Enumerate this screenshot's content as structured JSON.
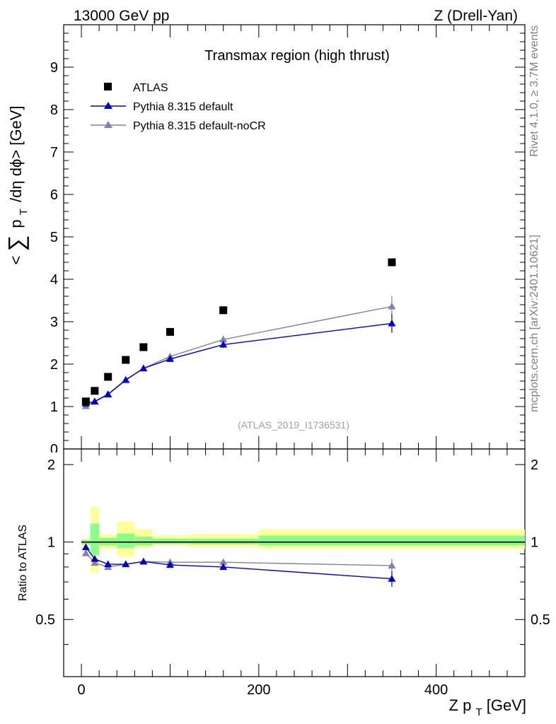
{
  "header": {
    "left": "13000 GeV pp",
    "right": "Z (Drell-Yan)"
  },
  "side_labels": {
    "rivet": "Rivet 4.1.0, ≥ 3.7M events",
    "mcplots": "mcplots.cern.ch [arXiv:2401.10621]"
  },
  "chart_data": [
    {
      "type": "scatter",
      "panel": "main",
      "title": "Transmax region (high thrust)",
      "watermark": "(ATLAS_2019_I1736531)",
      "ylabel": "< ∑ p_T /dη dφ> [GeV]",
      "ylabel_parts": {
        "open": "<",
        "sum": "∑",
        "p": "p",
        "sub": "T",
        "rest": "/dη dϕ> [GeV]"
      },
      "xlim": [
        -20,
        500
      ],
      "ylim": [
        0,
        10
      ],
      "yticks": [
        1,
        2,
        3,
        4,
        5,
        6,
        7,
        8,
        9
      ],
      "ytick_labels": [
        "1",
        "2",
        "3",
        "4",
        "5",
        "6",
        "7",
        "8",
        "9"
      ],
      "partial_tick_label": "0",
      "legend": {
        "placement": "top-left",
        "entries": [
          "ATLAS",
          "Pythia 8.315 default",
          "Pythia 8.315 default-noCR"
        ]
      },
      "colors": {
        "data": "#000000",
        "default": "#0000cc",
        "noCR": "#7f7fb2"
      },
      "series": [
        {
          "name": "ATLAS",
          "style": "square",
          "x": [
            5,
            15,
            30,
            50,
            70,
            100,
            160,
            350
          ],
          "y": [
            1.12,
            1.37,
            1.7,
            2.1,
            2.4,
            2.76,
            3.27,
            4.4
          ]
        },
        {
          "name": "Pythia 8.315 default",
          "style": "triangle-line",
          "x": [
            5,
            15,
            30,
            50,
            70,
            100,
            160,
            350
          ],
          "y": [
            1.07,
            1.12,
            1.29,
            1.63,
            1.9,
            2.12,
            2.46,
            2.96
          ],
          "yerr": [
            0.03,
            0.03,
            0.04,
            0.04,
            0.05,
            0.06,
            0.08,
            0.22
          ]
        },
        {
          "name": "Pythia 8.315 default-noCR",
          "style": "triangle-line",
          "x": [
            5,
            15,
            30,
            50,
            70,
            100,
            160,
            350
          ],
          "y": [
            1.01,
            1.11,
            1.28,
            1.62,
            1.9,
            2.18,
            2.58,
            3.36
          ],
          "yerr": [
            0.03,
            0.03,
            0.04,
            0.04,
            0.05,
            0.06,
            0.09,
            0.25
          ]
        }
      ]
    },
    {
      "type": "scatter",
      "panel": "ratio",
      "ylabel": "Ratio to ATLAS",
      "xlabel": "Z p_T [GeV]",
      "xlabel_parts": {
        "main": "Z p",
        "sub": "T",
        "rest": " [GeV]"
      },
      "xlim": [
        -20,
        500
      ],
      "ylim": [
        0.3,
        2.3
      ],
      "xticks": [
        0,
        200,
        400
      ],
      "xtick_labels": [
        "0",
        "200",
        "400"
      ],
      "yticks": [
        0.5,
        1,
        2
      ],
      "ytick_labels": [
        "0.5",
        "1",
        "2"
      ],
      "reference_line": 1,
      "bands": [
        {
          "x0": 0,
          "x1": 10,
          "y_lo": 0.97,
          "y_hi": 1.03,
          "g_lo": 0.98,
          "g_hi": 1.02
        },
        {
          "x0": 10,
          "x1": 20,
          "y_lo": 0.76,
          "y_hi": 1.37,
          "g_lo": 0.89,
          "g_hi": 1.18
        },
        {
          "x0": 20,
          "x1": 40,
          "y_lo": 0.94,
          "y_hi": 1.07,
          "g_lo": 0.97,
          "g_hi": 1.04
        },
        {
          "x0": 40,
          "x1": 60,
          "y_lo": 0.88,
          "y_hi": 1.2,
          "g_lo": 0.95,
          "g_hi": 1.08
        },
        {
          "x0": 60,
          "x1": 80,
          "y_lo": 0.95,
          "y_hi": 1.12,
          "g_lo": 0.97,
          "g_hi": 1.05
        },
        {
          "x0": 80,
          "x1": 120,
          "y_lo": 0.97,
          "y_hi": 1.06,
          "g_lo": 0.985,
          "g_hi": 1.03
        },
        {
          "x0": 120,
          "x1": 200,
          "y_lo": 0.96,
          "y_hi": 1.07,
          "g_lo": 0.98,
          "g_hi": 1.03
        },
        {
          "x0": 200,
          "x1": 500,
          "y_lo": 0.94,
          "y_hi": 1.12,
          "g_lo": 0.97,
          "g_hi": 1.06
        }
      ],
      "series": [
        {
          "name": "Pythia 8.315 default",
          "x": [
            5,
            15,
            30,
            50,
            70,
            100,
            160,
            350
          ],
          "y": [
            0.955,
            0.86,
            0.82,
            0.82,
            0.84,
            0.815,
            0.8,
            0.72
          ],
          "yerr": [
            0.02,
            0.02,
            0.02,
            0.02,
            0.02,
            0.02,
            0.02,
            0.05
          ]
        },
        {
          "name": "Pythia 8.315 default-noCR",
          "x": [
            5,
            15,
            30,
            50,
            70,
            100,
            160,
            350
          ],
          "y": [
            0.905,
            0.83,
            0.8,
            0.82,
            0.84,
            0.835,
            0.835,
            0.81
          ],
          "yerr": [
            0.02,
            0.02,
            0.02,
            0.02,
            0.02,
            0.02,
            0.025,
            0.05
          ]
        }
      ]
    }
  ]
}
